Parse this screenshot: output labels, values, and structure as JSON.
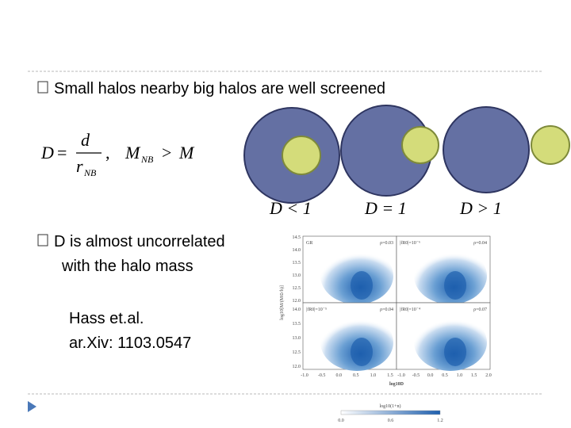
{
  "slide": {
    "bullet_1": "Small halos nearby big halos are well screened",
    "formula": {
      "lhs": "D",
      "equals": "=",
      "numerator": "d",
      "denominator": "r",
      "denominator_sub": "NB",
      "comma": ",",
      "cond_lhs": "M",
      "cond_lhs_sub": "NB",
      "cond_op": ">",
      "cond_rhs": "M"
    },
    "diagram_labels": [
      "D < 1",
      "D = 1",
      "D > 1"
    ],
    "bullet_2": [
      "D is almost uncorrelated",
      "with the halo mass"
    ],
    "reference": [
      "Hass et.al.",
      "ar.Xiv: 1103.0547"
    ],
    "figure": {
      "y_axis_label": "log10[M/(M⊙/h)]",
      "x_axis_label": "log10D",
      "panels": [
        {
          "left": "GR",
          "right": "ρ=0.03"
        },
        {
          "left": "|fR0|=10⁻⁶",
          "right": "ρ=0.04"
        },
        {
          "left": "|fR0|=10⁻⁵",
          "right": "ρ=0.04"
        },
        {
          "left": "|fR0|=10⁻⁴",
          "right": "ρ=0.07"
        }
      ],
      "yticks_top": [
        "14.5",
        "14.0",
        "13.5",
        "13.0",
        "12.5",
        "12.0"
      ],
      "yticks_bottom": [
        "14.0",
        "13.5",
        "13.0",
        "12.5",
        "12.0"
      ],
      "xticks_left": [
        "-1.0",
        "-0.5",
        "0.0",
        "0.5",
        "1.0",
        "1.5"
      ],
      "xticks_right": [
        "-1.0",
        "-0.5",
        "0.0",
        "0.5",
        "1.0",
        "1.5",
        "2.0"
      ],
      "colorbar_label": "log10(1+n)",
      "colorbar_ticks": [
        "0.0",
        "0.6",
        "1.2"
      ]
    }
  }
}
